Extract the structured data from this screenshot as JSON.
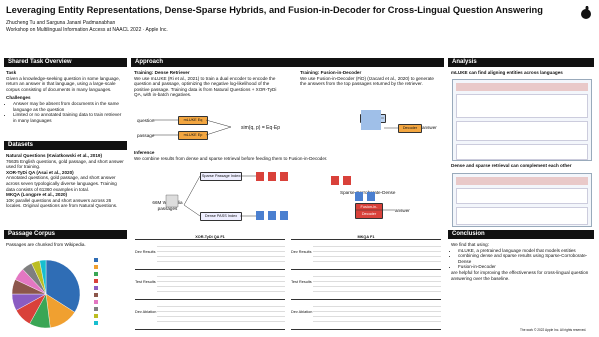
{
  "header": {
    "title": "Leveraging Entity Representations, Dense-Sparse Hybrids, and Fusion-in-Decoder for Cross-Lingual Question Answering",
    "authors": "Zhucheng Tu and Sarguna Janani Padmanabhan",
    "venue": "Workshop on Multilingual Information Access at NAACL 2022 · Apple Inc."
  },
  "overview": {
    "heading": "Shared Task Overview",
    "task_heading": "Task",
    "task_text": "Given a knowledge-seeking question in some language, return an answer in that language, using a large-scale corpus consisting of documents in many languages.",
    "challenges_heading": "Challenges",
    "challenges": [
      "Answer may be absent from documents in the same language as the question",
      "Limited or no annotated training data to train retriever in many languages"
    ]
  },
  "datasets": {
    "heading": "Datasets",
    "items": [
      {
        "name": "Natural Questions (Kwiatkowski et al., 2019)",
        "text": "76635 English questions, gold passage, and short answer used for training."
      },
      {
        "name": "XOR-TyDi QA (Asai et al., 2020)",
        "text": "Annotated questions, gold passage, and short answer across seven typologically diverse languages. Training data consists of 61360 examples in total."
      },
      {
        "name": "MKQA (Longpre et al., 2020)",
        "text": "10K parallel questions and short answers across 26 locales. Original questions are from Natural Questions."
      }
    ]
  },
  "corpus": {
    "heading": "Passage Corpus",
    "text": "Passages are chunked from Wikipedia.",
    "pie": [
      {
        "value": 34,
        "color": "#2f6db5"
      },
      {
        "value": 14,
        "color": "#f0a030"
      },
      {
        "value": 10,
        "color": "#3aa655"
      },
      {
        "value": 9,
        "color": "#d9413a"
      },
      {
        "value": 8,
        "color": "#8a5cc2"
      },
      {
        "value": 7,
        "color": "#8c564b"
      },
      {
        "value": 6,
        "color": "#e377c2"
      },
      {
        "value": 5,
        "color": "#7f7f7f"
      },
      {
        "value": 4,
        "color": "#bcbd22"
      },
      {
        "value": 3,
        "color": "#17becf"
      }
    ]
  },
  "approach": {
    "heading": "Approach",
    "dense_heading": "Training: Dense Retriever",
    "dense_text": "We use mLUKE (Ri et al., 2021) to train a dual encoder to encode the question and passage, optimizing the negative log-likelihood of the positive passage. Training data is from Natural Questions + XOR-TyDi QA, with in-batch negatives.",
    "fid_heading": "Training: Fusion-in-Decoder",
    "fid_text": "We use Fusion-in-Decoder (FiD) (Izacard et al., 2020) to generate the answers from the top passages returned by the retriever.",
    "inference_heading": "Inference",
    "inference_text": "We combine results from dense and sparse retrieval before feeding them to Fusion-in-Decoder.",
    "question": "question",
    "passage": "passage",
    "mluke_q": "mLUKE Eq",
    "mluke_p": "mLUKE Ep",
    "encoder": "Encoder",
    "decoder": "Decoder",
    "answer": "answer",
    "wiki": "66M Wikipedia passages",
    "sparse_index": "Sparse Passage Index",
    "dense_index": "Dense PASS Index",
    "scd": "Sparse-Corroborate-Dense",
    "fid_box": "Fusion-in-Decoder"
  },
  "results": {
    "tables": [
      {
        "title": "XOR-TyDi QA F1",
        "rows": [
          "Dev Results",
          "Test Results",
          "Dev Ablation"
        ]
      },
      {
        "title": "MKQA F1",
        "rows": [
          "Dev Results",
          "Test Results",
          "Dev Ablation"
        ]
      }
    ]
  },
  "analysis": {
    "heading": "Analysis",
    "finding1": "mLUKE can find aligning entities across languages",
    "finding2": "Dense and sparse retrieval can complement each other"
  },
  "conclusion": {
    "heading": "Conclusion",
    "intro": "We find that using:",
    "items": [
      "mLUKE, a pretrained language model that models entities",
      "combining dense and sparse results using Sparse-Corroborate-Dense",
      "Fusion-in-Decoder"
    ],
    "outro": "are helpful for improving the effectiveness for cross-lingual question answering over the baseline."
  },
  "footer": "The work © 2022 Apple Inc. All rights reserved."
}
